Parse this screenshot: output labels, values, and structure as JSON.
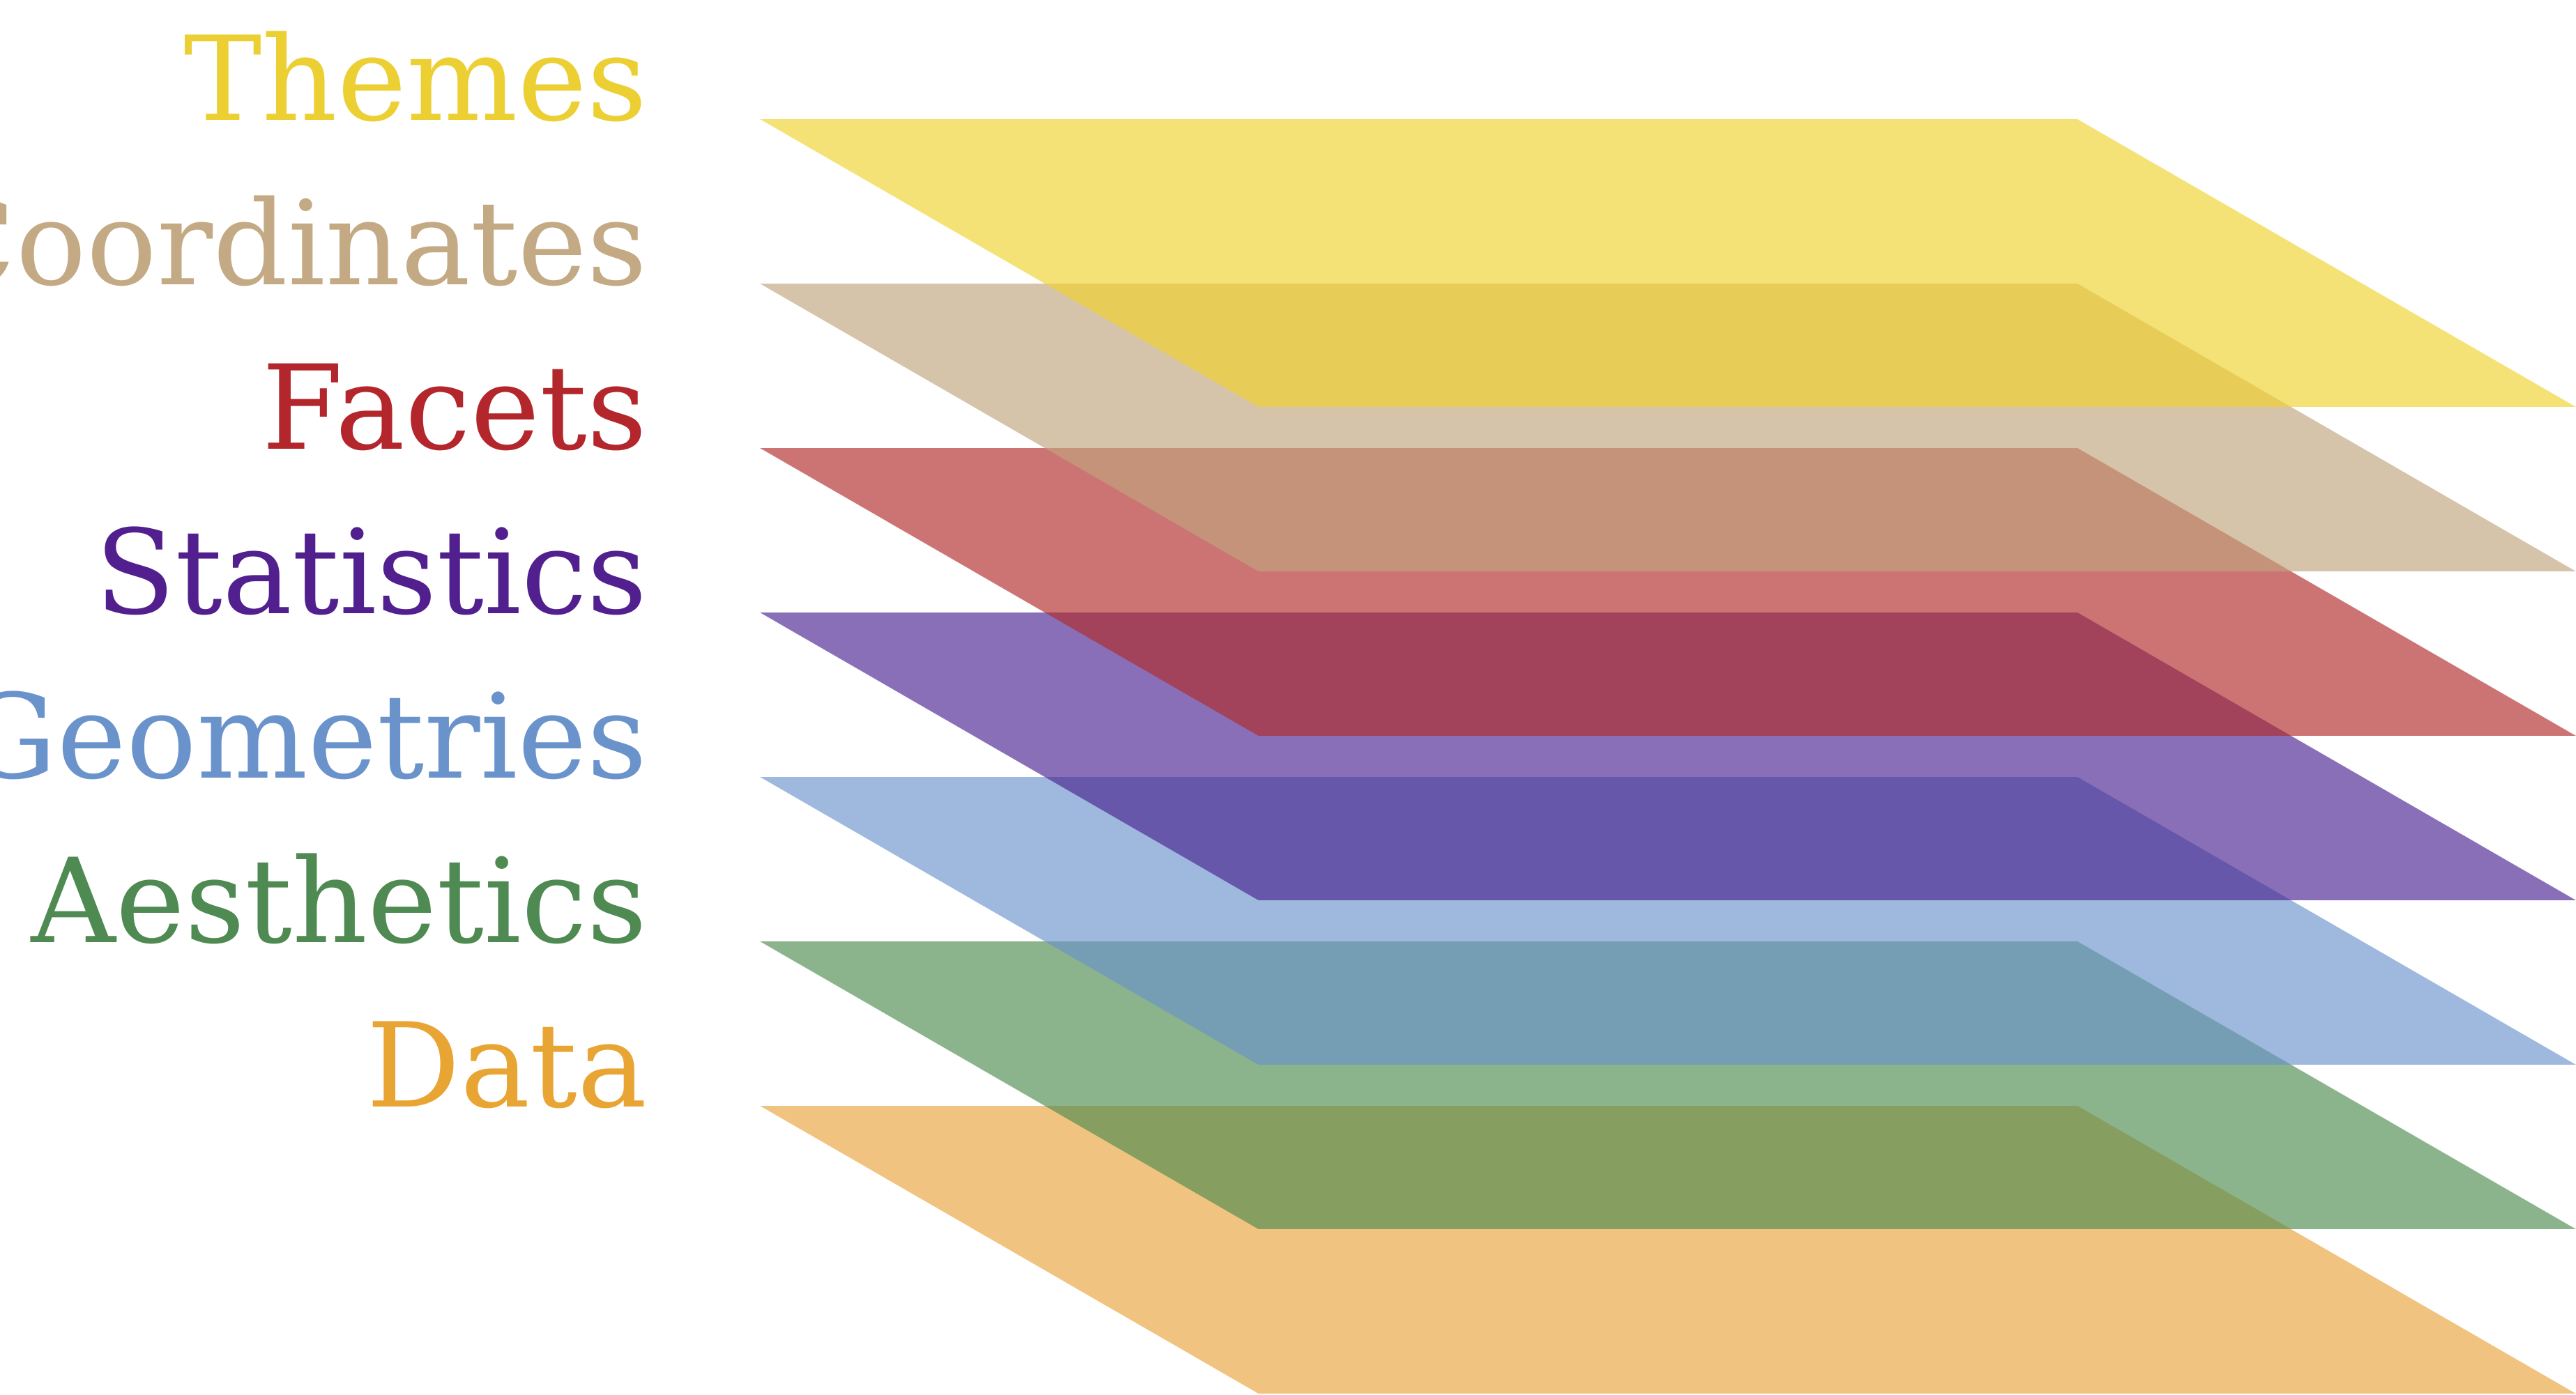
{
  "diagram": {
    "layers": [
      {
        "id": "themes",
        "label": "Themes",
        "color": "#f0d22c",
        "text_color": "#ebcf33"
      },
      {
        "id": "coordinates",
        "label": "Coordinates",
        "color": "#c0a57c",
        "text_color": "#c4aa84"
      },
      {
        "id": "facets",
        "label": "Facets",
        "color": "#b02a2a",
        "text_color": "#b3262c"
      },
      {
        "id": "statistics",
        "label": "Statistics",
        "color": "#4a2290",
        "text_color": "#52208e"
      },
      {
        "id": "geometries",
        "label": "Geometries",
        "color": "#6a93cb",
        "text_color": "#6a93cb"
      },
      {
        "id": "aesthetics",
        "label": "Aesthetics",
        "color": "#4d8a4f",
        "text_color": "#4e8a52"
      },
      {
        "id": "data",
        "label": "Data",
        "color": "#e8a53c",
        "text_color": "#e8a534"
      }
    ],
    "fill_opacity": 0.65
  }
}
